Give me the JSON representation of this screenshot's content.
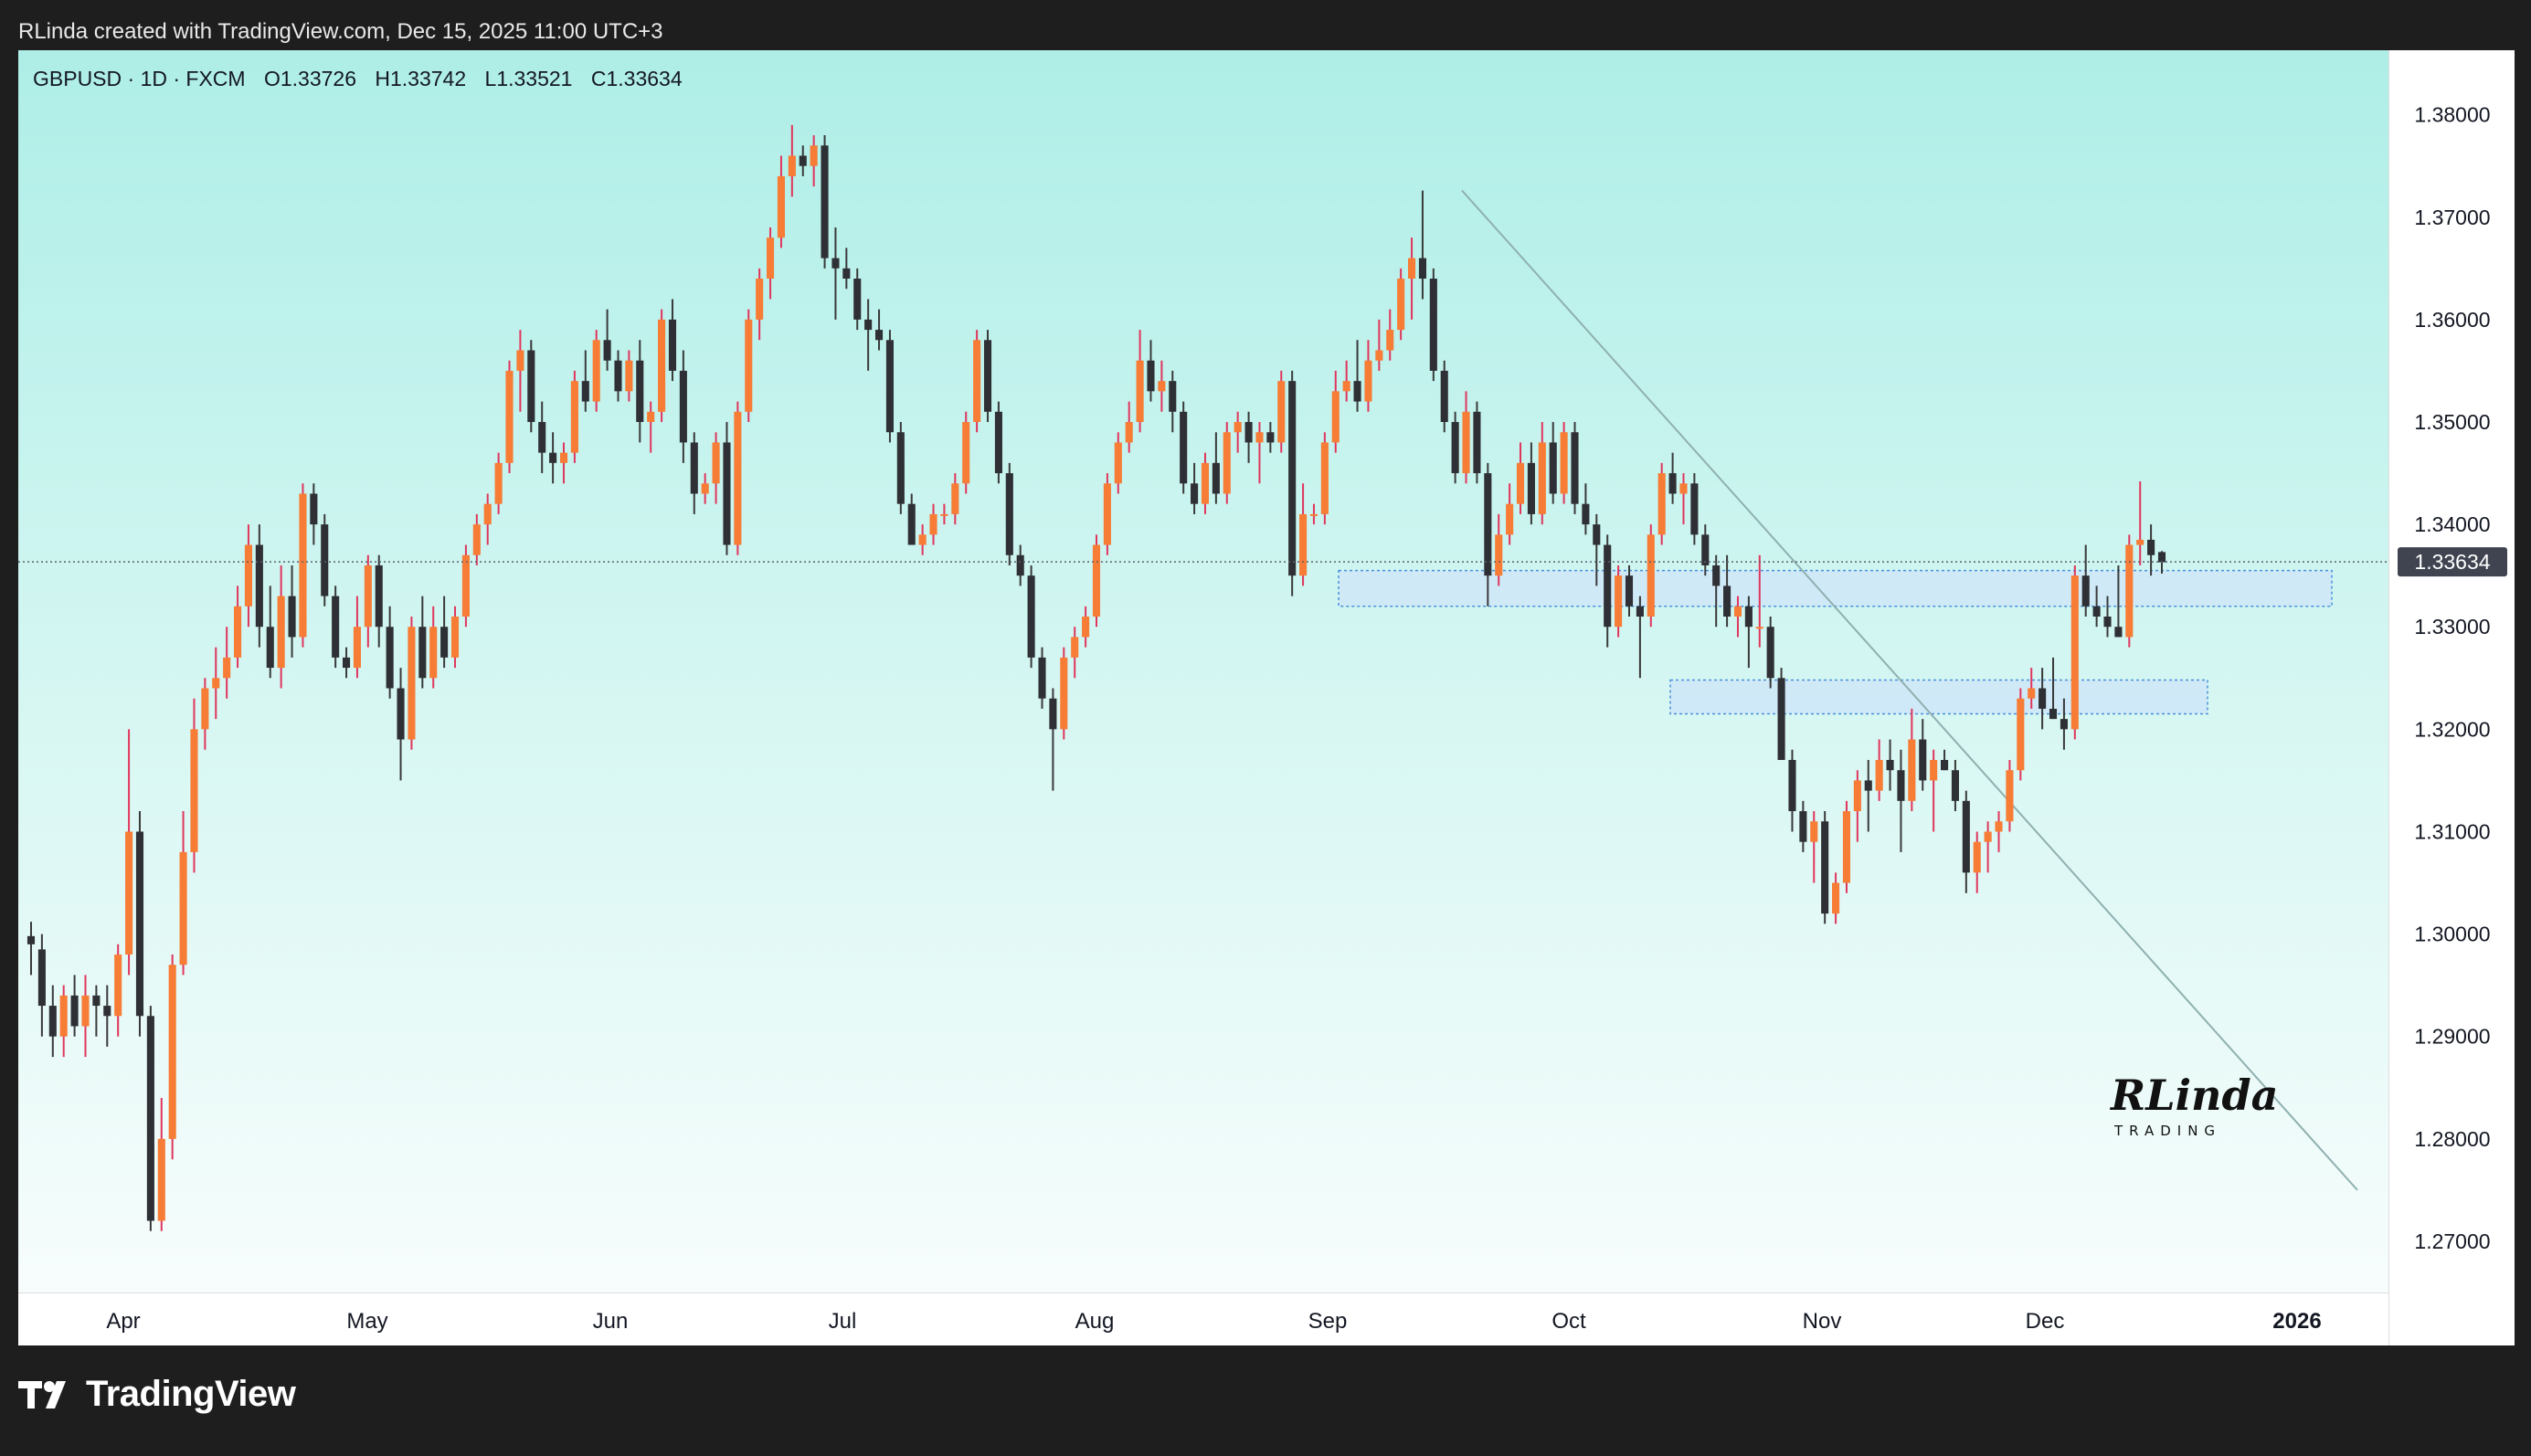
{
  "caption": "RLinda created with TradingView.com, Dec 15, 2025 11:00 UTC+3",
  "legend": {
    "symbol": "GBPUSD · 1D · FXCM",
    "open": "O1.33726",
    "high": "H1.33742",
    "low": "L1.33521",
    "close": "C1.33634"
  },
  "watermark": {
    "name": "RLinda",
    "sub": "TRADING"
  },
  "footer_brand": "TradingView",
  "colors": {
    "up": "#f77c35",
    "down": "#2f3035",
    "wick_up": "#e0365c",
    "wick_down": "#3a3a3a",
    "zone_fill": "#cfe6f8",
    "zone_border": "#4a90d9",
    "trendline": "#8fb0b0",
    "price_label_bg": "#3f4450"
  },
  "chart_data": {
    "type": "candlestick",
    "symbol": "GBPUSD",
    "timeframe": "1D",
    "ylim": [
      1.262,
      1.388
    ],
    "yticks": [
      "1.38000",
      "1.37000",
      "1.36000",
      "1.35000",
      "1.34000",
      "1.33000",
      "1.32000",
      "1.31000",
      "1.30000",
      "1.29000",
      "1.28000",
      "1.27000"
    ],
    "xticks": [
      "Apr",
      "May",
      "Jun",
      "Jul",
      "Aug",
      "Sep",
      "Oct",
      "Nov",
      "Dec",
      "2026"
    ],
    "last_price_label": "1.33634",
    "last_price": 1.33634,
    "candles": [
      [
        1.2998,
        1.3012,
        1.296,
        1.299
      ],
      [
        1.2985,
        1.3,
        1.29,
        1.293
      ],
      [
        1.293,
        1.295,
        1.288,
        1.29
      ],
      [
        1.29,
        1.295,
        1.288,
        1.294
      ],
      [
        1.294,
        1.296,
        1.29,
        1.291
      ],
      [
        1.291,
        1.296,
        1.288,
        1.294
      ],
      [
        1.294,
        1.295,
        1.29,
        1.293
      ],
      [
        1.293,
        1.295,
        1.289,
        1.292
      ],
      [
        1.292,
        1.299,
        1.29,
        1.298
      ],
      [
        1.298,
        1.32,
        1.296,
        1.31
      ],
      [
        1.31,
        1.312,
        1.29,
        1.292
      ],
      [
        1.292,
        1.293,
        1.271,
        1.272
      ],
      [
        1.272,
        1.284,
        1.271,
        1.28
      ],
      [
        1.28,
        1.298,
        1.278,
        1.297
      ],
      [
        1.297,
        1.312,
        1.296,
        1.308
      ],
      [
        1.308,
        1.323,
        1.306,
        1.32
      ],
      [
        1.32,
        1.325,
        1.318,
        1.324
      ],
      [
        1.324,
        1.328,
        1.321,
        1.325
      ],
      [
        1.325,
        1.33,
        1.323,
        1.327
      ],
      [
        1.327,
        1.334,
        1.326,
        1.332
      ],
      [
        1.332,
        1.34,
        1.33,
        1.338
      ],
      [
        1.338,
        1.34,
        1.328,
        1.33
      ],
      [
        1.33,
        1.334,
        1.325,
        1.326
      ],
      [
        1.326,
        1.336,
        1.324,
        1.333
      ],
      [
        1.333,
        1.336,
        1.327,
        1.329
      ],
      [
        1.329,
        1.344,
        1.328,
        1.343
      ],
      [
        1.343,
        1.344,
        1.338,
        1.34
      ],
      [
        1.34,
        1.341,
        1.332,
        1.333
      ],
      [
        1.333,
        1.334,
        1.326,
        1.327
      ],
      [
        1.327,
        1.328,
        1.325,
        1.326
      ],
      [
        1.326,
        1.333,
        1.325,
        1.33
      ],
      [
        1.33,
        1.337,
        1.328,
        1.336
      ],
      [
        1.336,
        1.337,
        1.328,
        1.33
      ],
      [
        1.33,
        1.332,
        1.323,
        1.324
      ],
      [
        1.324,
        1.326,
        1.315,
        1.319
      ],
      [
        1.319,
        1.331,
        1.318,
        1.33
      ],
      [
        1.33,
        1.333,
        1.324,
        1.325
      ],
      [
        1.325,
        1.332,
        1.324,
        1.33
      ],
      [
        1.33,
        1.333,
        1.326,
        1.327
      ],
      [
        1.327,
        1.332,
        1.326,
        1.331
      ],
      [
        1.331,
        1.338,
        1.33,
        1.337
      ],
      [
        1.337,
        1.341,
        1.336,
        1.34
      ],
      [
        1.34,
        1.343,
        1.338,
        1.342
      ],
      [
        1.342,
        1.347,
        1.341,
        1.346
      ],
      [
        1.346,
        1.356,
        1.345,
        1.355
      ],
      [
        1.355,
        1.359,
        1.351,
        1.357
      ],
      [
        1.357,
        1.358,
        1.349,
        1.35
      ],
      [
        1.35,
        1.352,
        1.345,
        1.347
      ],
      [
        1.347,
        1.349,
        1.344,
        1.346
      ],
      [
        1.346,
        1.348,
        1.344,
        1.347
      ],
      [
        1.347,
        1.355,
        1.346,
        1.354
      ],
      [
        1.354,
        1.357,
        1.351,
        1.352
      ],
      [
        1.352,
        1.359,
        1.351,
        1.358
      ],
      [
        1.358,
        1.361,
        1.355,
        1.356
      ],
      [
        1.356,
        1.357,
        1.352,
        1.353
      ],
      [
        1.353,
        1.357,
        1.352,
        1.356
      ],
      [
        1.356,
        1.358,
        1.348,
        1.35
      ],
      [
        1.35,
        1.352,
        1.347,
        1.351
      ],
      [
        1.351,
        1.361,
        1.35,
        1.36
      ],
      [
        1.36,
        1.362,
        1.354,
        1.355
      ],
      [
        1.355,
        1.357,
        1.346,
        1.348
      ],
      [
        1.348,
        1.349,
        1.341,
        1.343
      ],
      [
        1.343,
        1.345,
        1.342,
        1.344
      ],
      [
        1.344,
        1.349,
        1.342,
        1.348
      ],
      [
        1.348,
        1.35,
        1.337,
        1.338
      ],
      [
        1.338,
        1.352,
        1.337,
        1.351
      ],
      [
        1.351,
        1.361,
        1.35,
        1.36
      ],
      [
        1.36,
        1.365,
        1.358,
        1.364
      ],
      [
        1.364,
        1.369,
        1.362,
        1.368
      ],
      [
        1.368,
        1.376,
        1.367,
        1.374
      ],
      [
        1.374,
        1.379,
        1.372,
        1.376
      ],
      [
        1.376,
        1.377,
        1.374,
        1.375
      ],
      [
        1.375,
        1.378,
        1.373,
        1.377
      ],
      [
        1.377,
        1.378,
        1.365,
        1.366
      ],
      [
        1.366,
        1.369,
        1.36,
        1.365
      ],
      [
        1.365,
        1.367,
        1.363,
        1.364
      ],
      [
        1.364,
        1.365,
        1.359,
        1.36
      ],
      [
        1.36,
        1.362,
        1.355,
        1.359
      ],
      [
        1.359,
        1.361,
        1.357,
        1.358
      ],
      [
        1.358,
        1.359,
        1.348,
        1.349
      ],
      [
        1.349,
        1.35,
        1.341,
        1.342
      ],
      [
        1.342,
        1.343,
        1.338,
        1.338
      ],
      [
        1.338,
        1.34,
        1.337,
        1.339
      ],
      [
        1.339,
        1.342,
        1.338,
        1.341
      ],
      [
        1.341,
        1.342,
        1.34,
        1.341
      ],
      [
        1.341,
        1.345,
        1.34,
        1.344
      ],
      [
        1.344,
        1.351,
        1.343,
        1.35
      ],
      [
        1.35,
        1.359,
        1.349,
        1.358
      ],
      [
        1.358,
        1.359,
        1.35,
        1.351
      ],
      [
        1.351,
        1.352,
        1.344,
        1.345
      ],
      [
        1.345,
        1.346,
        1.336,
        1.337
      ],
      [
        1.337,
        1.338,
        1.334,
        1.335
      ],
      [
        1.335,
        1.336,
        1.326,
        1.327
      ],
      [
        1.327,
        1.328,
        1.322,
        1.323
      ],
      [
        1.323,
        1.324,
        1.314,
        1.32
      ],
      [
        1.32,
        1.328,
        1.319,
        1.327
      ],
      [
        1.327,
        1.33,
        1.325,
        1.329
      ],
      [
        1.329,
        1.332,
        1.328,
        1.331
      ],
      [
        1.331,
        1.339,
        1.33,
        1.338
      ],
      [
        1.338,
        1.345,
        1.337,
        1.344
      ],
      [
        1.344,
        1.349,
        1.343,
        1.348
      ],
      [
        1.348,
        1.352,
        1.347,
        1.35
      ],
      [
        1.35,
        1.359,
        1.349,
        1.356
      ],
      [
        1.356,
        1.358,
        1.352,
        1.353
      ],
      [
        1.353,
        1.356,
        1.351,
        1.354
      ],
      [
        1.354,
        1.355,
        1.349,
        1.351
      ],
      [
        1.351,
        1.352,
        1.343,
        1.344
      ],
      [
        1.344,
        1.346,
        1.341,
        1.342
      ],
      [
        1.342,
        1.347,
        1.341,
        1.346
      ],
      [
        1.346,
        1.349,
        1.342,
        1.343
      ],
      [
        1.343,
        1.35,
        1.342,
        1.349
      ],
      [
        1.349,
        1.351,
        1.347,
        1.35
      ],
      [
        1.35,
        1.351,
        1.346,
        1.348
      ],
      [
        1.348,
        1.35,
        1.344,
        1.349
      ],
      [
        1.349,
        1.35,
        1.347,
        1.348
      ],
      [
        1.348,
        1.355,
        1.347,
        1.354
      ],
      [
        1.354,
        1.355,
        1.333,
        1.335
      ],
      [
        1.335,
        1.344,
        1.334,
        1.341
      ],
      [
        1.341,
        1.342,
        1.34,
        1.341
      ],
      [
        1.341,
        1.349,
        1.34,
        1.348
      ],
      [
        1.348,
        1.355,
        1.347,
        1.353
      ],
      [
        1.353,
        1.356,
        1.352,
        1.354
      ],
      [
        1.354,
        1.358,
        1.351,
        1.352
      ],
      [
        1.352,
        1.358,
        1.351,
        1.356
      ],
      [
        1.356,
        1.36,
        1.355,
        1.357
      ],
      [
        1.357,
        1.361,
        1.356,
        1.359
      ],
      [
        1.359,
        1.365,
        1.358,
        1.364
      ],
      [
        1.364,
        1.368,
        1.36,
        1.366
      ],
      [
        1.366,
        1.3726,
        1.362,
        1.364
      ],
      [
        1.364,
        1.365,
        1.354,
        1.355
      ],
      [
        1.355,
        1.356,
        1.349,
        1.35
      ],
      [
        1.35,
        1.351,
        1.344,
        1.345
      ],
      [
        1.345,
        1.353,
        1.344,
        1.351
      ],
      [
        1.351,
        1.352,
        1.344,
        1.345
      ],
      [
        1.345,
        1.346,
        1.332,
        1.335
      ],
      [
        1.335,
        1.341,
        1.334,
        1.339
      ],
      [
        1.339,
        1.344,
        1.338,
        1.342
      ],
      [
        1.342,
        1.348,
        1.341,
        1.346
      ],
      [
        1.346,
        1.348,
        1.34,
        1.341
      ],
      [
        1.341,
        1.35,
        1.34,
        1.348
      ],
      [
        1.348,
        1.35,
        1.342,
        1.343
      ],
      [
        1.343,
        1.35,
        1.342,
        1.349
      ],
      [
        1.349,
        1.35,
        1.341,
        1.342
      ],
      [
        1.342,
        1.344,
        1.339,
        1.34
      ],
      [
        1.34,
        1.341,
        1.334,
        1.338
      ],
      [
        1.338,
        1.339,
        1.328,
        1.33
      ],
      [
        1.33,
        1.336,
        1.329,
        1.335
      ],
      [
        1.335,
        1.336,
        1.331,
        1.332
      ],
      [
        1.332,
        1.333,
        1.325,
        1.331
      ],
      [
        1.331,
        1.34,
        1.33,
        1.339
      ],
      [
        1.339,
        1.346,
        1.338,
        1.345
      ],
      [
        1.345,
        1.347,
        1.342,
        1.343
      ],
      [
        1.343,
        1.345,
        1.34,
        1.344
      ],
      [
        1.344,
        1.345,
        1.338,
        1.339
      ],
      [
        1.339,
        1.34,
        1.335,
        1.336
      ],
      [
        1.336,
        1.337,
        1.33,
        1.334
      ],
      [
        1.334,
        1.337,
        1.33,
        1.331
      ],
      [
        1.331,
        1.333,
        1.329,
        1.332
      ],
      [
        1.332,
        1.333,
        1.326,
        1.33
      ],
      [
        1.33,
        1.337,
        1.328,
        1.33
      ],
      [
        1.33,
        1.331,
        1.324,
        1.325
      ],
      [
        1.325,
        1.326,
        1.317,
        1.317
      ],
      [
        1.317,
        1.318,
        1.31,
        1.312
      ],
      [
        1.312,
        1.313,
        1.308,
        1.309
      ],
      [
        1.309,
        1.312,
        1.305,
        1.311
      ],
      [
        1.311,
        1.312,
        1.301,
        1.302
      ],
      [
        1.302,
        1.306,
        1.301,
        1.305
      ],
      [
        1.305,
        1.313,
        1.304,
        1.312
      ],
      [
        1.312,
        1.316,
        1.309,
        1.315
      ],
      [
        1.315,
        1.317,
        1.31,
        1.314
      ],
      [
        1.314,
        1.319,
        1.313,
        1.317
      ],
      [
        1.317,
        1.319,
        1.314,
        1.316
      ],
      [
        1.316,
        1.318,
        1.308,
        1.313
      ],
      [
        1.313,
        1.322,
        1.312,
        1.319
      ],
      [
        1.319,
        1.321,
        1.314,
        1.315
      ],
      [
        1.315,
        1.318,
        1.31,
        1.317
      ],
      [
        1.317,
        1.318,
        1.316,
        1.316
      ],
      [
        1.316,
        1.317,
        1.312,
        1.313
      ],
      [
        1.313,
        1.314,
        1.304,
        1.306
      ],
      [
        1.306,
        1.31,
        1.304,
        1.309
      ],
      [
        1.309,
        1.311,
        1.306,
        1.31
      ],
      [
        1.31,
        1.312,
        1.308,
        1.311
      ],
      [
        1.311,
        1.317,
        1.31,
        1.316
      ],
      [
        1.316,
        1.324,
        1.315,
        1.323
      ],
      [
        1.323,
        1.326,
        1.322,
        1.324
      ],
      [
        1.324,
        1.326,
        1.32,
        1.322
      ],
      [
        1.322,
        1.327,
        1.321,
        1.321
      ],
      [
        1.321,
        1.323,
        1.318,
        1.32
      ],
      [
        1.32,
        1.336,
        1.319,
        1.335
      ],
      [
        1.335,
        1.338,
        1.331,
        1.332
      ],
      [
        1.332,
        1.334,
        1.33,
        1.331
      ],
      [
        1.331,
        1.333,
        1.329,
        1.33
      ],
      [
        1.33,
        1.336,
        1.329,
        1.329
      ],
      [
        1.329,
        1.339,
        1.328,
        1.338
      ],
      [
        1.338,
        1.3442,
        1.336,
        1.3385
      ],
      [
        1.3385,
        1.34,
        1.335,
        1.337
      ],
      [
        1.3373,
        1.3374,
        1.3352,
        1.3363
      ]
    ],
    "zones": [
      {
        "top": 1.3355,
        "bottom": 1.332
      },
      {
        "top": 1.3248,
        "bottom": 1.3215
      }
    ],
    "trendline": {
      "from": 1.3726,
      "to": 1.275
    }
  }
}
